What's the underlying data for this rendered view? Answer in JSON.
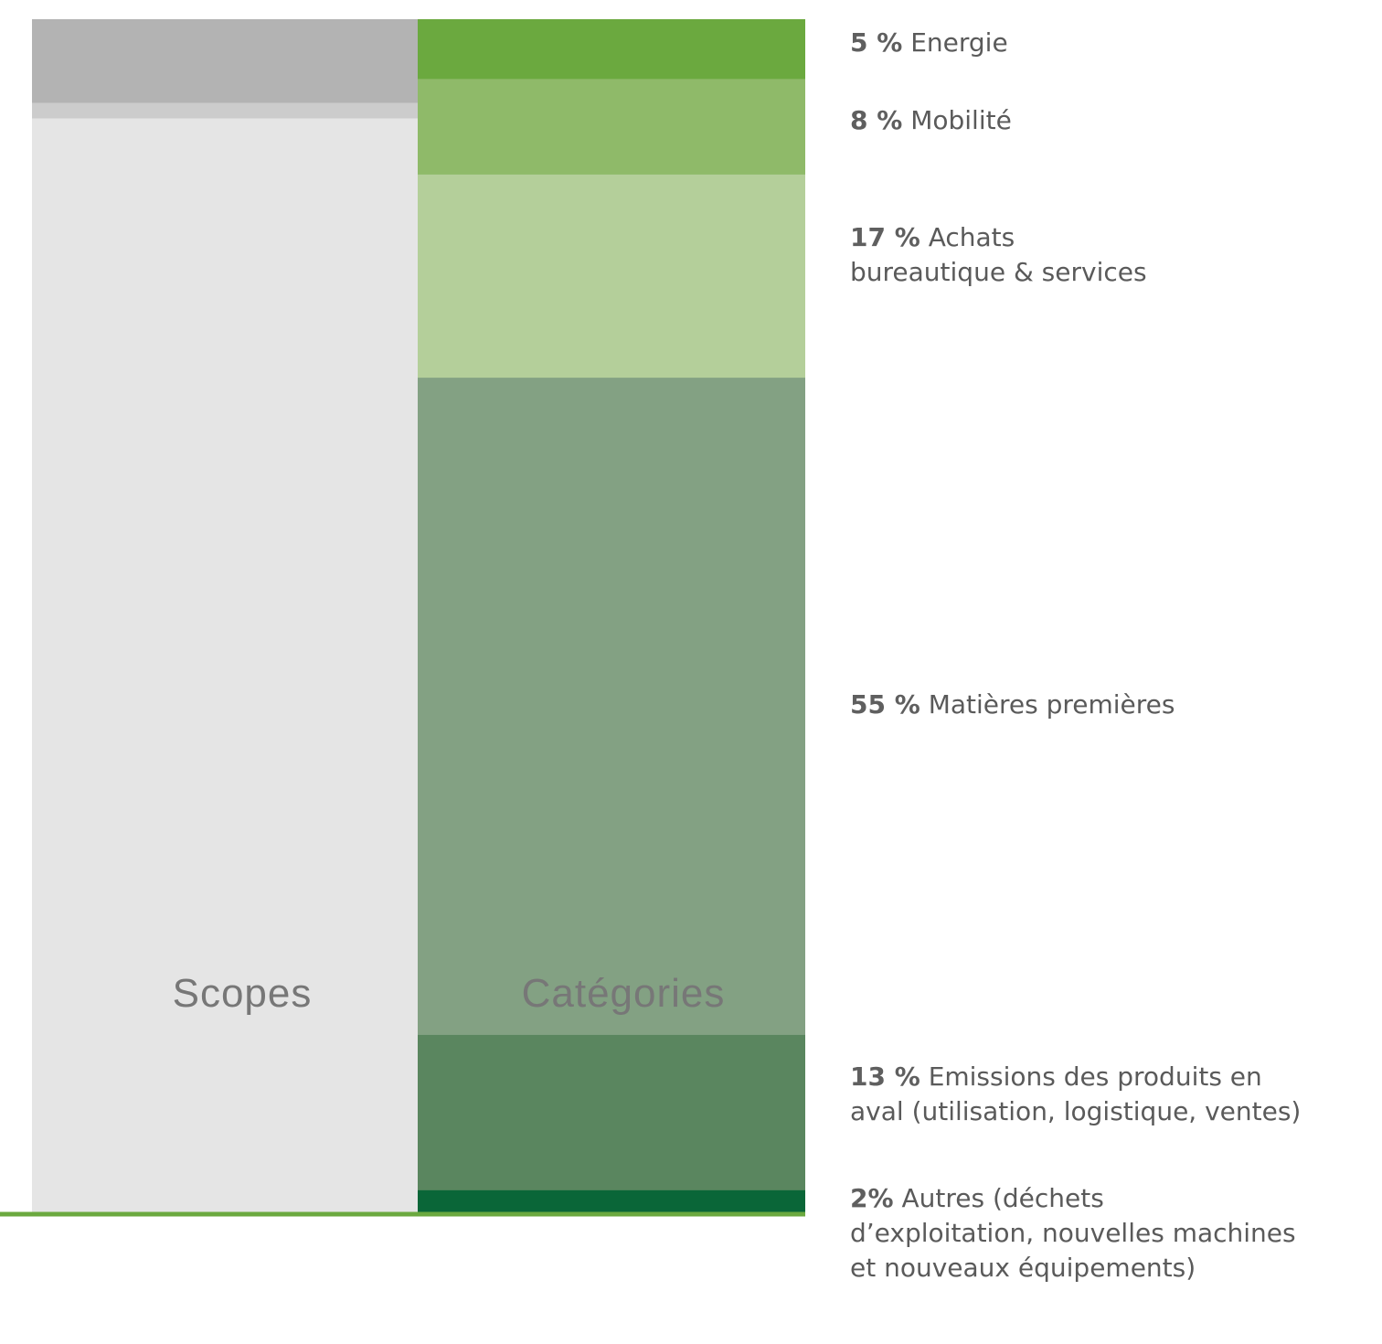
{
  "chart_data": {
    "type": "bar",
    "stacked": true,
    "orientation": "vertical",
    "categories": [
      "Scopes",
      "Catégories"
    ],
    "scopes": {
      "segments": [
        {
          "value": 7,
          "color": "#b3b3b3"
        },
        {
          "value": 1.3,
          "color": "#cccccc"
        },
        {
          "value": 91.7,
          "color": "#e5e5e5"
        }
      ]
    },
    "series": [
      {
        "pct": "5 %",
        "label": "Energie",
        "value": 5,
        "color": "#6ba93f"
      },
      {
        "pct": "8 %",
        "label": "Mobilité",
        "value": 8,
        "color": "#8fba69"
      },
      {
        "pct": "17 %",
        "label": "Achats\nbureautique & services",
        "value": 17,
        "color": "#b4cf9a"
      },
      {
        "pct": "55 %",
        "label": "Matières premières",
        "value": 55,
        "color": "#83a183"
      },
      {
        "pct": "13 %",
        "label": "Emissions des produits en\naval (utilisation, logistique, ventes)",
        "value": 13,
        "color": "#5a865f"
      },
      {
        "pct": "2%",
        "label": "Autres (déchets\nd’exploitation, nouvelles machines\net nouveaux équipements)",
        "value": 2,
        "color": "#0a6638"
      }
    ],
    "baseline_color": "#6ba93f",
    "ylim": [
      0,
      100
    ],
    "legend": "right"
  }
}
